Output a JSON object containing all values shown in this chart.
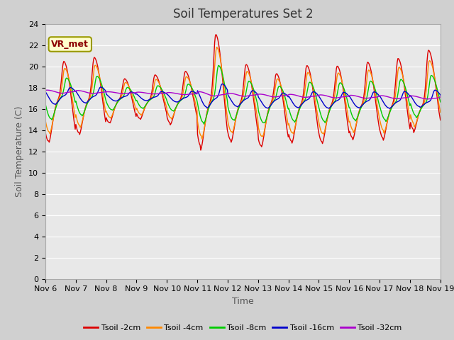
{
  "title": "Soil Temperatures Set 2",
  "xlabel": "Time",
  "ylabel": "Soil Temperature (C)",
  "ylim": [
    0,
    24
  ],
  "yticks": [
    0,
    2,
    4,
    6,
    8,
    10,
    12,
    14,
    16,
    18,
    20,
    22,
    24
  ],
  "xtick_labels": [
    "Nov 6",
    "Nov 7",
    "Nov 8",
    "Nov 9",
    "Nov 10",
    "Nov 11",
    "Nov 12",
    "Nov 13",
    "Nov 14",
    "Nov 15",
    "Nov 16",
    "Nov 17",
    "Nov 18",
    "Nov 19"
  ],
  "annotation": "VR_met",
  "fig_bg_color": "#d0d0d0",
  "plot_bg_color": "#e8e8e8",
  "series": [
    {
      "label": "Tsoil -2cm",
      "color": "#dd0000",
      "lw": 1.0
    },
    {
      "label": "Tsoil -4cm",
      "color": "#ff8800",
      "lw": 1.0
    },
    {
      "label": "Tsoil -8cm",
      "color": "#00cc00",
      "lw": 1.0
    },
    {
      "label": "Tsoil -16cm",
      "color": "#0000cc",
      "lw": 1.0
    },
    {
      "label": "Tsoil -32cm",
      "color": "#aa00cc",
      "lw": 1.0
    }
  ],
  "title_fontsize": 12,
  "axis_label_fontsize": 9,
  "tick_fontsize": 8,
  "annotation_fontsize": 9,
  "legend_fontsize": 8
}
